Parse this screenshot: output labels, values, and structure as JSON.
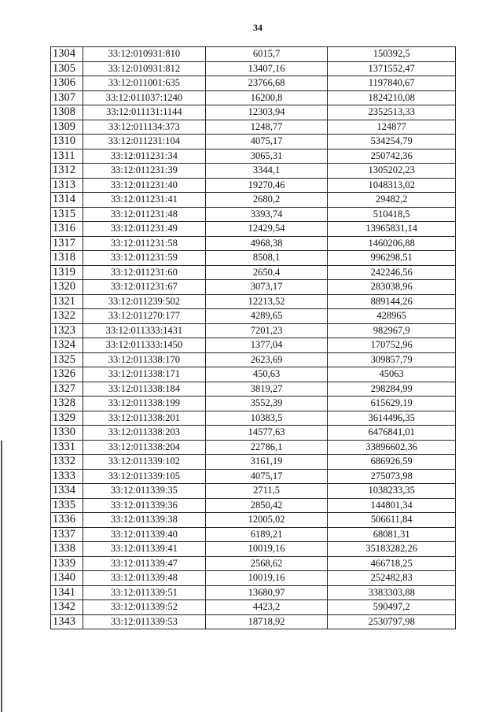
{
  "page_number": "34",
  "rows": [
    [
      "1304",
      "33:12:010931:810",
      "6015,7",
      "150392,5"
    ],
    [
      "1305",
      "33:12:010931:812",
      "13407,16",
      "1371552,47"
    ],
    [
      "1306",
      "33:12:011001:635",
      "23766,68",
      "1197840,67"
    ],
    [
      "1307",
      "33:12:011037:1240",
      "16200,8",
      "1824210,08"
    ],
    [
      "1308",
      "33:12:011131:1144",
      "12303,94",
      "2352513,33"
    ],
    [
      "1309",
      "33:12:011134:373",
      "1248,77",
      "124877"
    ],
    [
      "1310",
      "33:12:011231:104",
      "4075,17",
      "534254,79"
    ],
    [
      "1311",
      "33:12:011231:34",
      "3065,31",
      "250742,36"
    ],
    [
      "1312",
      "33:12:011231:39",
      "3344,1",
      "1305202,23"
    ],
    [
      "1313",
      "33:12:011231:40",
      "19270,46",
      "1048313,02"
    ],
    [
      "1314",
      "33:12:011231:41",
      "2680,2",
      "29482,2"
    ],
    [
      "1315",
      "33:12:011231:48",
      "3393,74",
      "510418,5"
    ],
    [
      "1316",
      "33:12:011231:49",
      "12429,54",
      "13965831,14"
    ],
    [
      "1317",
      "33:12:011231:58",
      "4968,38",
      "1460206,88"
    ],
    [
      "1318",
      "33:12:011231:59",
      "8508,1",
      "996298,51"
    ],
    [
      "1319",
      "33:12:011231:60",
      "2650,4",
      "242246,56"
    ],
    [
      "1320",
      "33:12:011231:67",
      "3073,17",
      "283038,96"
    ],
    [
      "1321",
      "33:12:011239:502",
      "12213,52",
      "889144,26"
    ],
    [
      "1322",
      "33:12:011270:177",
      "4289,65",
      "428965"
    ],
    [
      "1323",
      "33:12:011333:1431",
      "7201,23",
      "982967,9"
    ],
    [
      "1324",
      "33:12:011333:1450",
      "1377,04",
      "170752,96"
    ],
    [
      "1325",
      "33:12:011338:170",
      "2623,69",
      "309857,79"
    ],
    [
      "1326",
      "33:12:011338:171",
      "450,63",
      "45063"
    ],
    [
      "1327",
      "33:12:011338:184",
      "3819,27",
      "298284,99"
    ],
    [
      "1328",
      "33:12:011338:199",
      "3552,39",
      "615629,19"
    ],
    [
      "1329",
      "33:12:011338:201",
      "10383,5",
      "3614496,35"
    ],
    [
      "1330",
      "33:12:011338:203",
      "14577,63",
      "6476841,01"
    ],
    [
      "1331",
      "33:12:011338:204",
      "22786,1",
      "33896602,36"
    ],
    [
      "1332",
      "33:12:011339:102",
      "3161,19",
      "686926,59"
    ],
    [
      "1333",
      "33:12:011339:105",
      "4075,17",
      "275073,98"
    ],
    [
      "1334",
      "33:12:011339:35",
      "2711,5",
      "1038233,35"
    ],
    [
      "1335",
      "33:12:011339:36",
      "2850,42",
      "144801,34"
    ],
    [
      "1336",
      "33:12:011339:38",
      "12005,02",
      "506611,84"
    ],
    [
      "1337",
      "33:12:011339:40",
      "6189,21",
      "68081,31"
    ],
    [
      "1338",
      "33:12:011339:41",
      "10019,16",
      "35183282,26"
    ],
    [
      "1339",
      "33:12:011339:47",
      "2568,62",
      "466718,25"
    ],
    [
      "1340",
      "33:12:011339:48",
      "10019,16",
      "252482,83"
    ],
    [
      "1341",
      "33:12:011339:51",
      "13680,97",
      "3383303,88"
    ],
    [
      "1342",
      "33:12:011339:52",
      "4423,2",
      "590497,2"
    ],
    [
      "1343",
      "33:12:011339:53",
      "18718,92",
      "2530797,98"
    ]
  ]
}
